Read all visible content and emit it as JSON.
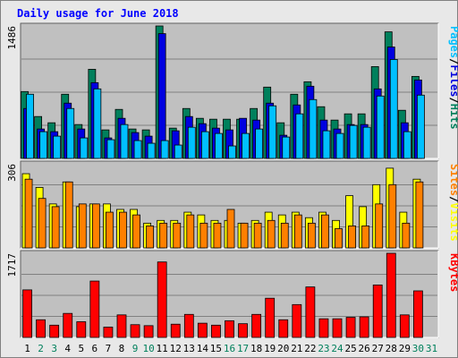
{
  "title": "Daily usage for June 2018",
  "colors": {
    "background": "#e8e8e8",
    "panel": "#c0c0c0",
    "hits": "#00805c",
    "files": "#0000e0",
    "pages": "#00c0ff",
    "visits": "#ffff00",
    "sites": "#ff8000",
    "kbytes": "#ff0000",
    "weekday_label": "#000000",
    "weekend_label": "#00805c"
  },
  "days": [
    "1",
    "2",
    "3",
    "4",
    "5",
    "6",
    "7",
    "8",
    "9",
    "10",
    "11",
    "12",
    "13",
    "14",
    "15",
    "16",
    "17",
    "18",
    "19",
    "20",
    "21",
    "22",
    "23",
    "24",
    "25",
    "26",
    "27",
    "28",
    "29",
    "30",
    "31"
  ],
  "weekend_days": [
    2,
    3,
    9,
    10,
    16,
    17,
    23,
    24,
    30,
    31
  ],
  "panels": {
    "top": {
      "max_label": "1486",
      "side_labels": [
        "Pages",
        "/",
        "Files",
        "/",
        "Hits"
      ],
      "side_colors": [
        "#00c0ff",
        "#000000",
        "#0000e0",
        "#000000",
        "#00805c"
      ]
    },
    "mid": {
      "max_label": "306",
      "side_labels": [
        "Sites",
        "/",
        "Visits"
      ],
      "side_colors": [
        "#ff8000",
        "#000000",
        "#ffff00"
      ]
    },
    "bot": {
      "max_label": "1717",
      "side_labels": [
        "KBytes"
      ],
      "side_colors": [
        "#ff0000"
      ]
    }
  },
  "chart_data": [
    {
      "type": "bar",
      "panel": "top",
      "ylim": [
        0,
        1486
      ],
      "categories": [
        "1",
        "2",
        "3",
        "4",
        "5",
        "6",
        "7",
        "8",
        "9",
        "10",
        "11",
        "12",
        "13",
        "14",
        "15",
        "16",
        "17",
        "18",
        "19",
        "20",
        "21",
        "22",
        "23",
        "24",
        "25",
        "26",
        "27",
        "28",
        "29",
        "30",
        "31"
      ],
      "series": [
        {
          "name": "Hits",
          "values": [
            750,
            470,
            400,
            720,
            380,
            1000,
            320,
            550,
            330,
            320,
            1486,
            340,
            560,
            450,
            440,
            440,
            440,
            560,
            800,
            400,
            720,
            860,
            580,
            430,
            500,
            500,
            1030,
            1420,
            540,
            920,
            null
          ]
        },
        {
          "name": "Files",
          "values": [
            560,
            330,
            300,
            620,
            330,
            850,
            230,
            450,
            290,
            250,
            1400,
            310,
            470,
            390,
            340,
            320,
            450,
            430,
            620,
            260,
            600,
            810,
            430,
            330,
            380,
            380,
            780,
            1250,
            400,
            880,
            null
          ]
        },
        {
          "name": "Pages",
          "values": [
            720,
            300,
            250,
            560,
            230,
            780,
            210,
            380,
            200,
            170,
            200,
            150,
            350,
            300,
            280,
            140,
            280,
            330,
            590,
            240,
            500,
            660,
            310,
            280,
            370,
            350,
            700,
            1110,
            300,
            710,
            null
          ]
        }
      ]
    },
    {
      "type": "bar",
      "panel": "mid",
      "ylim": [
        0,
        306
      ],
      "categories": [
        "1",
        "2",
        "3",
        "4",
        "5",
        "6",
        "7",
        "8",
        "9",
        "10",
        "11",
        "12",
        "13",
        "14",
        "15",
        "16",
        "17",
        "18",
        "19",
        "20",
        "21",
        "22",
        "23",
        "24",
        "25",
        "26",
        "27",
        "28",
        "29",
        "30",
        "31"
      ],
      "series": [
        {
          "name": "Visits",
          "values": [
            270,
            220,
            160,
            240,
            150,
            160,
            160,
            140,
            140,
            90,
            100,
            100,
            130,
            120,
            100,
            100,
            90,
            100,
            130,
            120,
            130,
            110,
            130,
            100,
            190,
            150,
            230,
            290,
            130,
            250,
            null
          ]
        },
        {
          "name": "Sites",
          "values": [
            250,
            180,
            150,
            240,
            160,
            160,
            130,
            130,
            120,
            80,
            90,
            90,
            120,
            90,
            90,
            140,
            90,
            90,
            100,
            90,
            120,
            90,
            120,
            70,
            80,
            80,
            160,
            230,
            90,
            240,
            null
          ]
        }
      ]
    },
    {
      "type": "bar",
      "panel": "bot",
      "ylim": [
        0,
        1717
      ],
      "categories": [
        "1",
        "2",
        "3",
        "4",
        "5",
        "6",
        "7",
        "8",
        "9",
        "10",
        "11",
        "12",
        "13",
        "14",
        "15",
        "16",
        "17",
        "18",
        "19",
        "20",
        "21",
        "22",
        "23",
        "24",
        "25",
        "26",
        "27",
        "28",
        "29",
        "30",
        "31"
      ],
      "series": [
        {
          "name": "KBytes",
          "values": [
            970,
            360,
            250,
            490,
            320,
            1150,
            210,
            460,
            260,
            240,
            1540,
            270,
            470,
            290,
            250,
            340,
            280,
            470,
            800,
            360,
            670,
            1030,
            380,
            380,
            410,
            420,
            1070,
            1717,
            460,
            950,
            null
          ]
        }
      ]
    }
  ]
}
